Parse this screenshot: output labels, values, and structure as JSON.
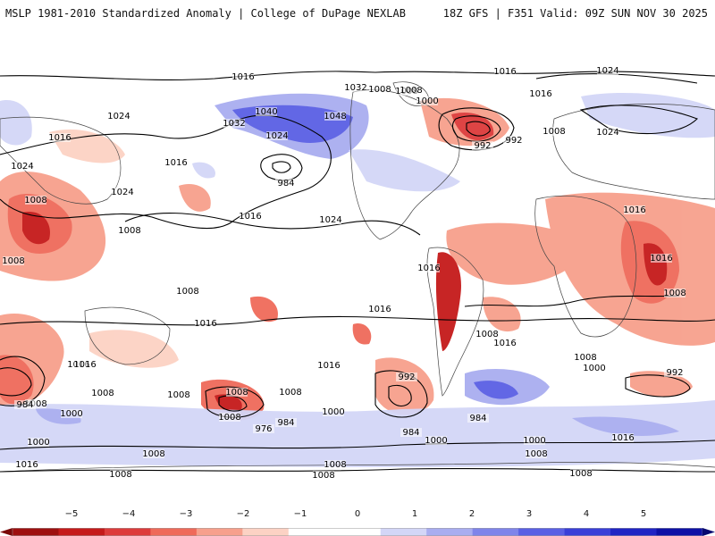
{
  "header": {
    "left_title": "MSLP 1981-2010 Standardized Anomaly | College of DuPage NEXLAB",
    "right_title": "18Z GFS | F351 Valid: 09Z SUN NOV 30 2025"
  },
  "map": {
    "isobar_labels": [
      "1024",
      "1016",
      "1032",
      "1040",
      "1048",
      "1008",
      "1000",
      "984",
      "992",
      "1008",
      "1016",
      "1024",
      "1016",
      "1024",
      "1032",
      "1024",
      "1008",
      "1016",
      "1024",
      "1008",
      "1016",
      "1024",
      "1016",
      "1024",
      "1008",
      "1008",
      "1008",
      "1016",
      "1008",
      "1008",
      "1008",
      "1008",
      "1016",
      "1016",
      "1008",
      "1016",
      "1008",
      "1016",
      "1008",
      "1000",
      "992",
      "1016",
      "1008",
      "992",
      "1008",
      "984",
      "1000",
      "992",
      "984",
      "1008",
      "1000",
      "976",
      "1016",
      "1008",
      "1000",
      "984",
      "1000",
      "984",
      "1016",
      "1008",
      "1008",
      "1000",
      "1008",
      "1016",
      "1008",
      "1008",
      "1016",
      "1016"
    ]
  },
  "colorbar": {
    "ticks": [
      "−5",
      "−4",
      "−3",
      "−2",
      "−1",
      "0",
      "1",
      "2",
      "3",
      "4",
      "5"
    ],
    "colors": [
      "#9e0f0f",
      "#c51a1a",
      "#dd3b3b",
      "#ef6a5a",
      "#f7a08c",
      "#fcd2c4",
      "#ffffff",
      "#ffffff",
      "#d3d6f7",
      "#a9adf0",
      "#7f84ea",
      "#5a5fe4",
      "#3a3fd8",
      "#1f24c4",
      "#0d10a6"
    ]
  }
}
